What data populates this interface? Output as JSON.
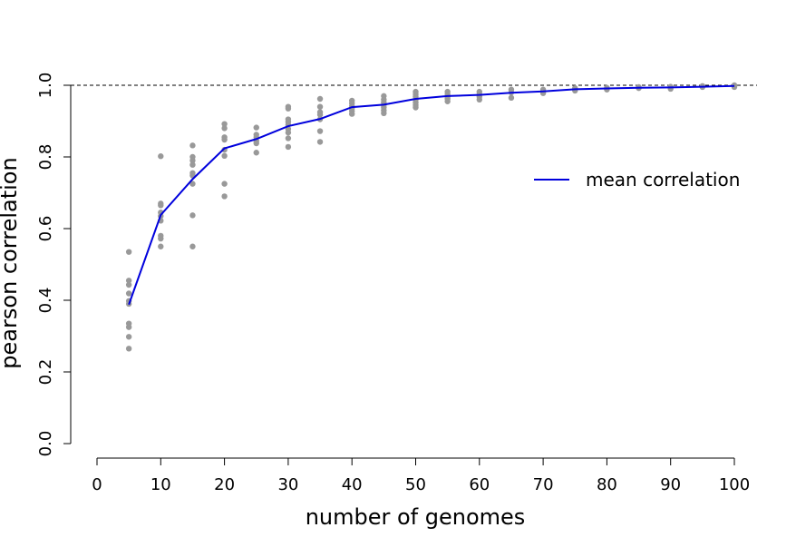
{
  "chart_data": {
    "type": "scatter",
    "title": "",
    "xlabel": "number of genomes",
    "ylabel": "pearson correlation",
    "xlim": [
      0,
      100
    ],
    "ylim": [
      0,
      1
    ],
    "xticks": [
      "0",
      "10",
      "20",
      "30",
      "40",
      "50",
      "60",
      "70",
      "80",
      "90",
      "100"
    ],
    "yticks": [
      "0.0",
      "0.2",
      "0.4",
      "0.6",
      "0.8",
      "1.0"
    ],
    "reference_line": {
      "y": 1.0,
      "style": "dashed"
    },
    "legend": {
      "position": "right",
      "entries": [
        "mean correlation"
      ]
    },
    "colors": {
      "points": "#999999",
      "mean_line": "#0000dd",
      "reference": "#000000"
    },
    "points": [
      {
        "x": 5,
        "y": 0.535
      },
      {
        "x": 5,
        "y": 0.455
      },
      {
        "x": 5,
        "y": 0.443
      },
      {
        "x": 5,
        "y": 0.419
      },
      {
        "x": 5,
        "y": 0.398
      },
      {
        "x": 5,
        "y": 0.39
      },
      {
        "x": 5,
        "y": 0.335
      },
      {
        "x": 5,
        "y": 0.325
      },
      {
        "x": 5,
        "y": 0.298
      },
      {
        "x": 5,
        "y": 0.265
      },
      {
        "x": 10,
        "y": 0.802
      },
      {
        "x": 10,
        "y": 0.67
      },
      {
        "x": 10,
        "y": 0.665
      },
      {
        "x": 10,
        "y": 0.645
      },
      {
        "x": 10,
        "y": 0.635
      },
      {
        "x": 10,
        "y": 0.622
      },
      {
        "x": 10,
        "y": 0.58
      },
      {
        "x": 10,
        "y": 0.572
      },
      {
        "x": 10,
        "y": 0.55
      },
      {
        "x": 15,
        "y": 0.832
      },
      {
        "x": 15,
        "y": 0.8
      },
      {
        "x": 15,
        "y": 0.79
      },
      {
        "x": 15,
        "y": 0.778
      },
      {
        "x": 15,
        "y": 0.755
      },
      {
        "x": 15,
        "y": 0.748
      },
      {
        "x": 15,
        "y": 0.725
      },
      {
        "x": 15,
        "y": 0.637
      },
      {
        "x": 15,
        "y": 0.55
      },
      {
        "x": 20,
        "y": 0.892
      },
      {
        "x": 20,
        "y": 0.88
      },
      {
        "x": 20,
        "y": 0.855
      },
      {
        "x": 20,
        "y": 0.848
      },
      {
        "x": 20,
        "y": 0.82
      },
      {
        "x": 20,
        "y": 0.803
      },
      {
        "x": 20,
        "y": 0.725
      },
      {
        "x": 20,
        "y": 0.69
      },
      {
        "x": 25,
        "y": 0.882
      },
      {
        "x": 25,
        "y": 0.862
      },
      {
        "x": 25,
        "y": 0.855
      },
      {
        "x": 25,
        "y": 0.845
      },
      {
        "x": 25,
        "y": 0.838
      },
      {
        "x": 25,
        "y": 0.812
      },
      {
        "x": 30,
        "y": 0.94
      },
      {
        "x": 30,
        "y": 0.935
      },
      {
        "x": 30,
        "y": 0.905
      },
      {
        "x": 30,
        "y": 0.898
      },
      {
        "x": 30,
        "y": 0.89
      },
      {
        "x": 30,
        "y": 0.878
      },
      {
        "x": 30,
        "y": 0.868
      },
      {
        "x": 30,
        "y": 0.852
      },
      {
        "x": 30,
        "y": 0.828
      },
      {
        "x": 35,
        "y": 0.962
      },
      {
        "x": 35,
        "y": 0.94
      },
      {
        "x": 35,
        "y": 0.925
      },
      {
        "x": 35,
        "y": 0.918
      },
      {
        "x": 35,
        "y": 0.905
      },
      {
        "x": 35,
        "y": 0.872
      },
      {
        "x": 35,
        "y": 0.842
      },
      {
        "x": 40,
        "y": 0.957
      },
      {
        "x": 40,
        "y": 0.95
      },
      {
        "x": 40,
        "y": 0.942
      },
      {
        "x": 40,
        "y": 0.935
      },
      {
        "x": 40,
        "y": 0.928
      },
      {
        "x": 40,
        "y": 0.92
      },
      {
        "x": 45,
        "y": 0.97
      },
      {
        "x": 45,
        "y": 0.96
      },
      {
        "x": 45,
        "y": 0.952
      },
      {
        "x": 45,
        "y": 0.945
      },
      {
        "x": 45,
        "y": 0.938
      },
      {
        "x": 45,
        "y": 0.93
      },
      {
        "x": 45,
        "y": 0.922
      },
      {
        "x": 50,
        "y": 0.982
      },
      {
        "x": 50,
        "y": 0.975
      },
      {
        "x": 50,
        "y": 0.968
      },
      {
        "x": 50,
        "y": 0.96
      },
      {
        "x": 50,
        "y": 0.952
      },
      {
        "x": 50,
        "y": 0.945
      },
      {
        "x": 50,
        "y": 0.938
      },
      {
        "x": 55,
        "y": 0.982
      },
      {
        "x": 55,
        "y": 0.975
      },
      {
        "x": 55,
        "y": 0.968
      },
      {
        "x": 55,
        "y": 0.962
      },
      {
        "x": 55,
        "y": 0.955
      },
      {
        "x": 60,
        "y": 0.982
      },
      {
        "x": 60,
        "y": 0.975
      },
      {
        "x": 60,
        "y": 0.968
      },
      {
        "x": 60,
        "y": 0.96
      },
      {
        "x": 65,
        "y": 0.988
      },
      {
        "x": 65,
        "y": 0.98
      },
      {
        "x": 65,
        "y": 0.965
      },
      {
        "x": 70,
        "y": 0.988
      },
      {
        "x": 70,
        "y": 0.982
      },
      {
        "x": 70,
        "y": 0.978
      },
      {
        "x": 75,
        "y": 0.992
      },
      {
        "x": 75,
        "y": 0.985
      },
      {
        "x": 80,
        "y": 0.993
      },
      {
        "x": 80,
        "y": 0.988
      },
      {
        "x": 85,
        "y": 0.995
      },
      {
        "x": 85,
        "y": 0.992
      },
      {
        "x": 90,
        "y": 0.996
      },
      {
        "x": 90,
        "y": 0.99
      },
      {
        "x": 95,
        "y": 0.998
      },
      {
        "x": 95,
        "y": 0.995
      },
      {
        "x": 100,
        "y": 1.0
      },
      {
        "x": 100,
        "y": 0.995
      }
    ],
    "series": [
      {
        "name": "mean correlation",
        "x": [
          5,
          10,
          15,
          20,
          25,
          30,
          35,
          40,
          45,
          50,
          55,
          60,
          65,
          70,
          75,
          80,
          85,
          90,
          95,
          100
        ],
        "values": [
          0.388,
          0.638,
          0.738,
          0.824,
          0.85,
          0.886,
          0.906,
          0.939,
          0.946,
          0.962,
          0.97,
          0.973,
          0.979,
          0.983,
          0.989,
          0.991,
          0.993,
          0.994,
          0.996,
          0.998
        ]
      }
    ]
  }
}
